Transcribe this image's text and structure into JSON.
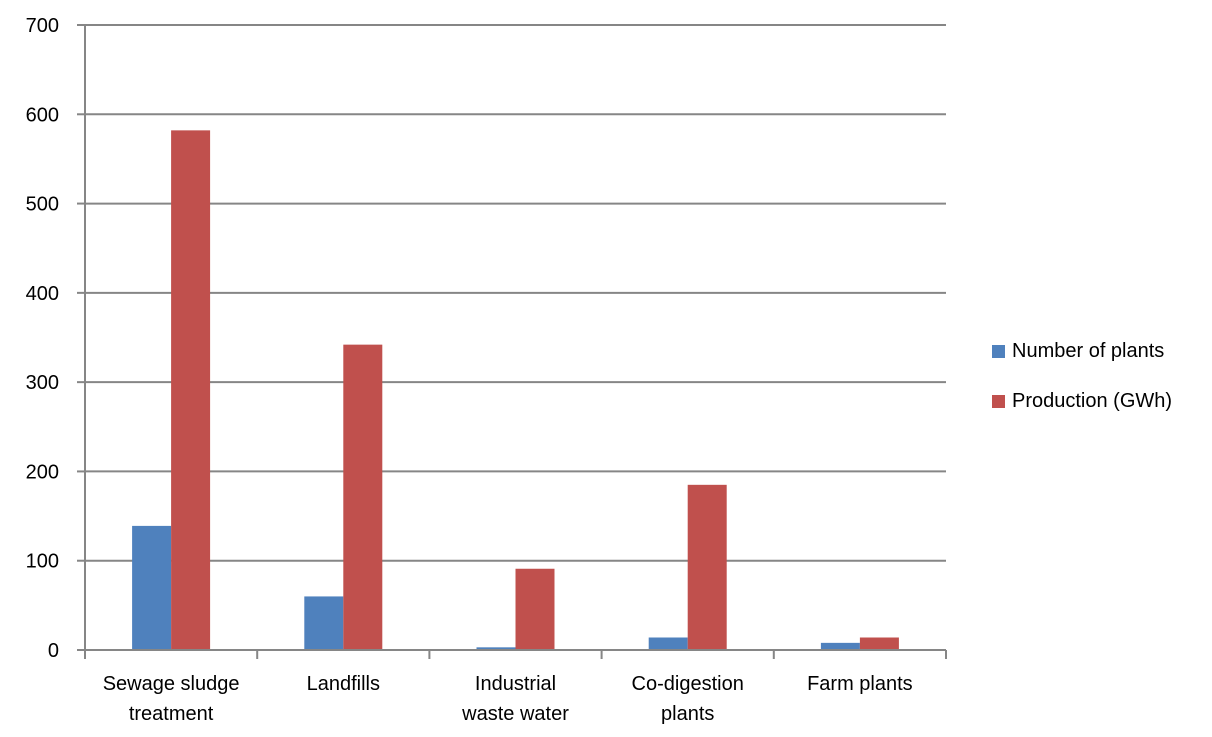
{
  "chart_data": {
    "type": "bar",
    "categories": [
      [
        "Sewage sludge",
        "treatment"
      ],
      [
        "Landfills"
      ],
      [
        "Industrial",
        "waste water"
      ],
      [
        "Co-digestion",
        "plants"
      ],
      [
        "Farm plants"
      ]
    ],
    "series": [
      {
        "name": "Number of plants",
        "color": "#4f81bd",
        "values": [
          139,
          60,
          3,
          14,
          8
        ]
      },
      {
        "name": "Production (GWh)",
        "color": "#c0504d",
        "values": [
          582,
          342,
          91,
          185,
          14
        ]
      }
    ],
    "ylim": [
      0,
      700
    ],
    "yticks": [
      0,
      100,
      200,
      300,
      400,
      500,
      600,
      700
    ],
    "grid": true,
    "legend_position": "right"
  }
}
